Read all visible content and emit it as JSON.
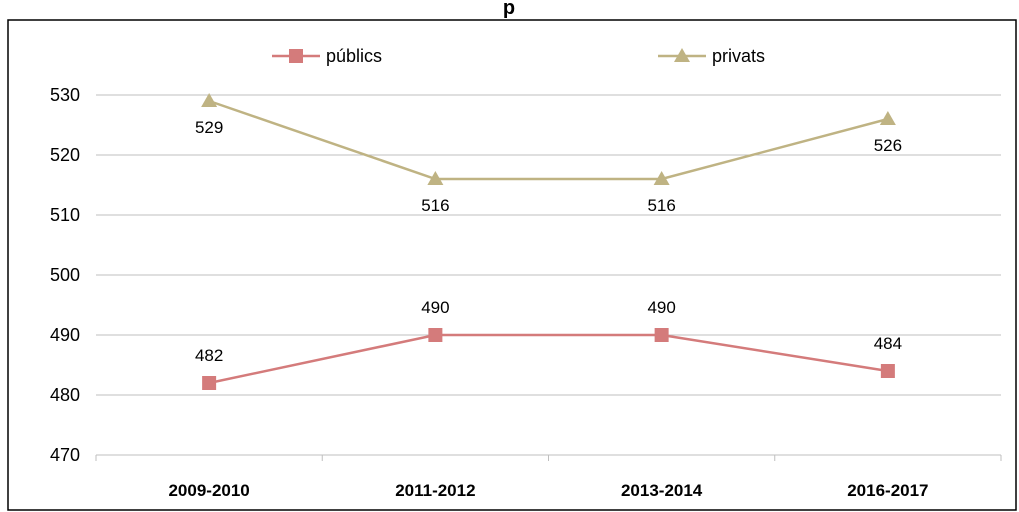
{
  "chart_data": {
    "type": "line",
    "title": "p",
    "categories": [
      "2009-2010",
      "2011-2012",
      "2013-2014",
      "2016-2017"
    ],
    "ylim": [
      470,
      530
    ],
    "yticks": [
      "470",
      "480",
      "490",
      "500",
      "510",
      "520",
      "530"
    ],
    "grid": true,
    "legend_position": "top",
    "series": [
      {
        "name": "públics",
        "values": [
          482,
          490,
          490,
          484
        ],
        "labels": [
          "482",
          "490",
          "490",
          "484"
        ],
        "color": "#d47b7b",
        "marker": "square"
      },
      {
        "name": "privats",
        "values": [
          529,
          516,
          516,
          526
        ],
        "labels": [
          "529",
          "516",
          "516",
          "526"
        ],
        "color": "#bfb383",
        "marker": "triangle"
      }
    ]
  }
}
